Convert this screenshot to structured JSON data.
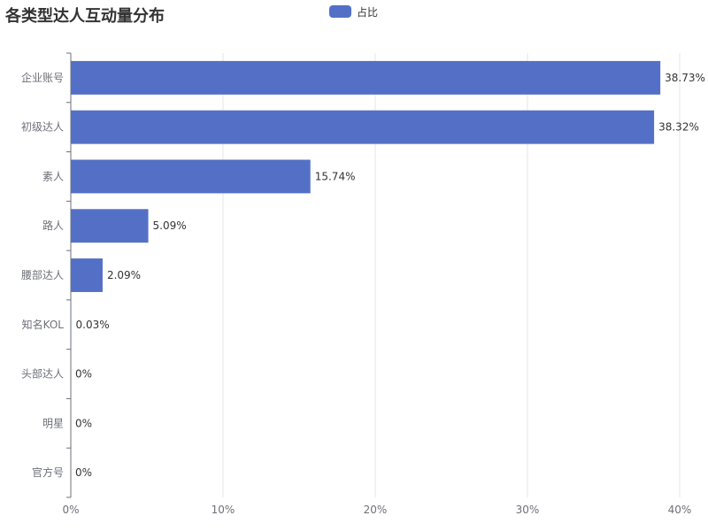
{
  "chart_data": {
    "type": "bar",
    "orientation": "horizontal",
    "title": "各类型达人互动量分布",
    "categories": [
      "企业账号",
      "初级达人",
      "素人",
      "路人",
      "腰部达人",
      "知名KOL",
      "头部达人",
      "明星",
      "官方号"
    ],
    "series": [
      {
        "name": "占比",
        "values": [
          38.73,
          38.32,
          15.74,
          5.09,
          2.09,
          0.03,
          0,
          0,
          0
        ],
        "labels": [
          "38.73%",
          "38.32%",
          "15.74%",
          "5.09%",
          "2.09%",
          "0.03%",
          "0%",
          "0%",
          "0%"
        ]
      }
    ],
    "xlim": [
      0,
      40
    ],
    "xticks": [
      "0%",
      "10%",
      "20%",
      "30%",
      "40%"
    ],
    "grid": true,
    "legend_position": "top-center",
    "bar_color": "#5470c6"
  }
}
